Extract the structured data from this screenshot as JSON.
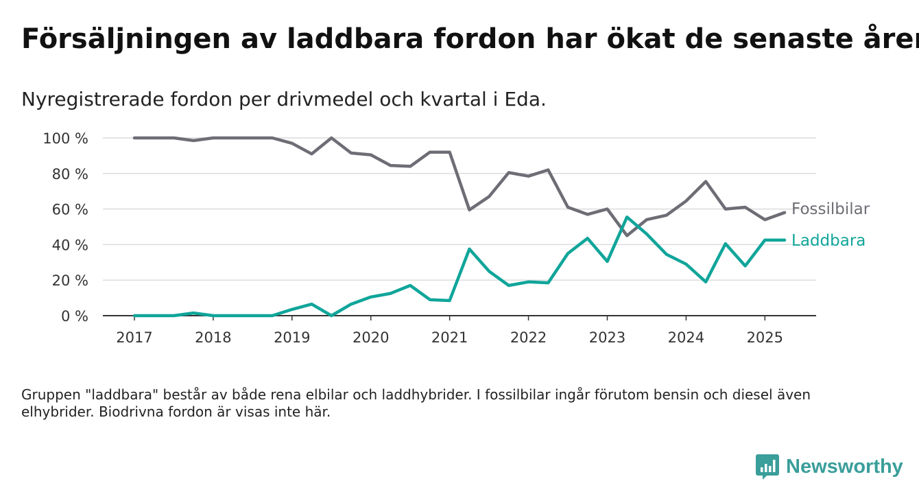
{
  "title": "Försäljningen av laddbara fordon har ökat de senaste åren",
  "subtitle": "Nyregistrerade fordon per drivmedel och kvartal i Eda.",
  "note": "Gruppen \"laddbara\" består av både rena elbilar och laddhybrider. I fossilbilar ingår förutom bensin och diesel även elhybrider. Biodrivna fordon är visas inte här.",
  "brand": {
    "name": "Newsworthy",
    "icon": "bar-chart-bubble-icon",
    "color": "#3a9e9a"
  },
  "chart_data": {
    "type": "line",
    "x": [
      2017.0,
      2017.25,
      2017.5,
      2017.75,
      2018.0,
      2018.25,
      2018.5,
      2018.75,
      2019.0,
      2019.25,
      2019.5,
      2019.75,
      2020.0,
      2020.25,
      2020.5,
      2020.75,
      2021.0,
      2021.25,
      2021.5,
      2021.75,
      2022.0,
      2022.25,
      2022.5,
      2022.75,
      2023.0,
      2023.25,
      2023.5,
      2023.75,
      2024.0,
      2024.25,
      2024.5,
      2024.75,
      2025.0,
      2025.25
    ],
    "xticks": [
      2017,
      2018,
      2019,
      2020,
      2021,
      2022,
      2023,
      2024,
      2025
    ],
    "xtick_labels": [
      "2017",
      "2018",
      "2019",
      "2020",
      "2021",
      "2022",
      "2023",
      "2024",
      "2025"
    ],
    "xlim": [
      2016.6,
      2025.65
    ],
    "ylim": [
      0,
      100
    ],
    "yticks": [
      0,
      20,
      40,
      60,
      80,
      100
    ],
    "ytick_labels": [
      "0 %",
      "20 %",
      "40 %",
      "60 %",
      "80 %",
      "100 %"
    ],
    "grid": true,
    "legend": "direct labels at line ends",
    "series": [
      {
        "name": "Fossilbilar",
        "color": "#6d6d75",
        "values": [
          100,
          100,
          100,
          98.5,
          100,
          100,
          100,
          100,
          97,
          91,
          100,
          91.5,
          90.5,
          84.5,
          84,
          92,
          92,
          59.5,
          67,
          80.5,
          78.5,
          82,
          61,
          57,
          60,
          45,
          54,
          56.5,
          64.5,
          75.5,
          60,
          61,
          54,
          58
        ]
      },
      {
        "name": "Laddbara",
        "color": "#10a59a",
        "values": [
          0,
          0,
          0,
          1.5,
          0,
          0,
          0,
          0,
          3.5,
          6.5,
          0,
          6.5,
          10.5,
          12.5,
          17,
          9,
          8.5,
          37.5,
          25,
          17,
          19,
          18.5,
          35,
          43.5,
          30.5,
          55.5,
          46,
          34.5,
          29,
          19,
          40.5,
          28,
          42.5,
          42.5
        ]
      }
    ]
  }
}
